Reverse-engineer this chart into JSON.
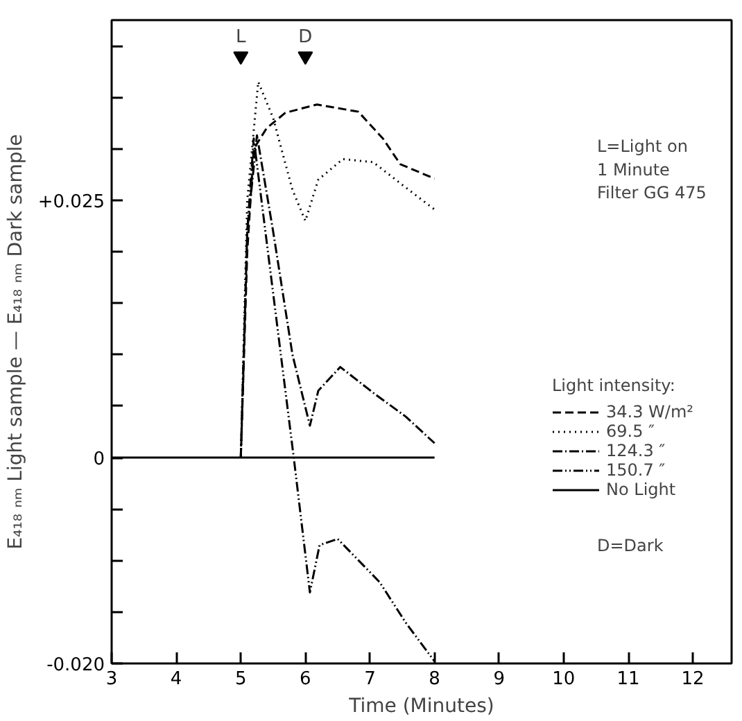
{
  "chart_data": {
    "type": "line",
    "xlabel": "Time (Minutes)",
    "ylabel": "E₄₁₈ ₙₘ Light sample — E₄₁₈ ₙₘ Dark sample",
    "legend_title": "Light intensity:",
    "legend": "right",
    "grid": false,
    "marker": "none",
    "xlim": [
      3,
      12.6
    ],
    "ylim": [
      -0.02,
      0.0425
    ],
    "xticks": [
      3,
      4,
      5,
      6,
      7,
      8,
      9,
      10,
      11,
      12
    ],
    "yticks": [
      {
        "value": -0.02,
        "label": "-0.020"
      },
      {
        "value": -0.015,
        "label": null
      },
      {
        "value": -0.01,
        "label": null
      },
      {
        "value": -0.005,
        "label": null
      },
      {
        "value": 0,
        "label": "0"
      },
      {
        "value": 0.005,
        "label": null
      },
      {
        "value": 0.01,
        "label": null
      },
      {
        "value": 0.015,
        "label": null
      },
      {
        "value": 0.02,
        "label": null
      },
      {
        "value": 0.025,
        "label": "+0.025"
      },
      {
        "value": 0.03,
        "label": null
      },
      {
        "value": 0.035,
        "label": null
      },
      {
        "value": 0.04,
        "label": null
      }
    ],
    "series": [
      {
        "name": "34.3 W/m²",
        "color": "#000000",
        "line_style": "dashed",
        "x": [
          5.0,
          5.1,
          5.2,
          5.4,
          5.69,
          6.18,
          6.82,
          7.2,
          7.47,
          8.0
        ],
        "values": [
          0,
          0.02,
          0.03,
          0.032,
          0.0335,
          0.0343,
          0.0336,
          0.031,
          0.0285,
          0.0271
        ]
      },
      {
        "name": "69.5 ″",
        "color": "#000000",
        "line_style": "dotted",
        "x": [
          5.0,
          5.1,
          5.27,
          5.5,
          5.8,
          6.0,
          6.2,
          6.58,
          7.05,
          7.5,
          8.0
        ],
        "values": [
          0,
          0.025,
          0.0365,
          0.033,
          0.026,
          0.023,
          0.027,
          0.029,
          0.0287,
          0.0265,
          0.0241
        ]
      },
      {
        "name": "124.3 ″",
        "color": "#000000",
        "line_style": "dashdot",
        "x": [
          5.0,
          5.1,
          5.25,
          5.5,
          5.8,
          6.07,
          6.2,
          6.54,
          7.07,
          7.55,
          8.0
        ],
        "values": [
          0,
          0.022,
          0.0313,
          0.022,
          0.01,
          0.0031,
          0.0065,
          0.0088,
          0.0062,
          0.004,
          0.0014
        ]
      },
      {
        "name": "150.7 ″",
        "color": "#000000",
        "line_style": "dashdotdot",
        "x": [
          5.0,
          5.1,
          5.2,
          5.5,
          5.82,
          6.07,
          6.22,
          6.5,
          7.15,
          7.55,
          8.0
        ],
        "values": [
          0,
          0.022,
          0.031,
          0.016,
          0,
          -0.0131,
          -0.0085,
          -0.0079,
          -0.0121,
          -0.016,
          -0.0198
        ]
      },
      {
        "name": "No Light",
        "color": "#000000",
        "line_style": "solid",
        "x": [
          3,
          8
        ],
        "values": [
          0,
          0
        ]
      }
    ],
    "annotations": [
      {
        "text": "L",
        "x": 5,
        "y": 0.039
      },
      {
        "text": "D",
        "x": 6,
        "y": 0.039
      },
      "L=Light on\n    1 Minute\n    Filter  GG 475",
      "D=Dark"
    ]
  }
}
